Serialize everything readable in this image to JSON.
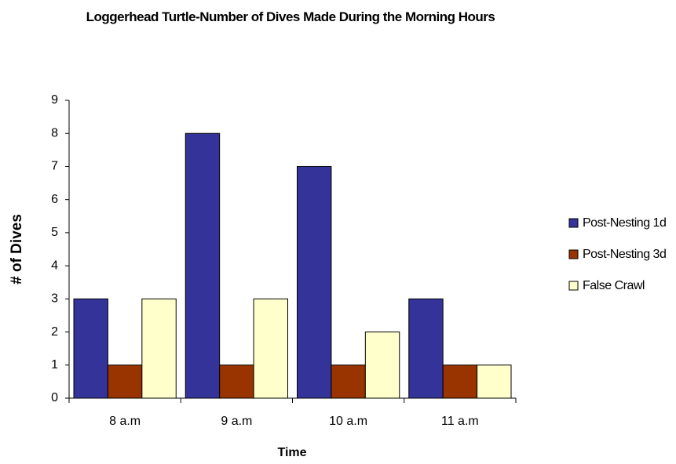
{
  "chart_data": {
    "type": "bar",
    "title": "Loggerhead Turtle-Number of Dives Made During the Morning Hours",
    "x_label": "Time",
    "y_label": "# of Dives",
    "categories": [
      "8 a.m",
      "9 a.m",
      "10 a.m",
      "11 a.m"
    ],
    "series": [
      {
        "name": "Post-Nesting 1d",
        "color": "#333399",
        "values": [
          3,
          8,
          7,
          3
        ]
      },
      {
        "name": "Post-Nesting 3d",
        "color": "#993300",
        "values": [
          1,
          1,
          1,
          1
        ]
      },
      {
        "name": "False Crawl",
        "color": "#ffffcc",
        "values": [
          3,
          3,
          2,
          1
        ]
      }
    ],
    "ylim": [
      0,
      9
    ],
    "yticks": [
      0,
      1,
      2,
      3,
      4,
      5,
      6,
      7,
      8,
      9
    ],
    "grid": false,
    "legend": "right"
  }
}
